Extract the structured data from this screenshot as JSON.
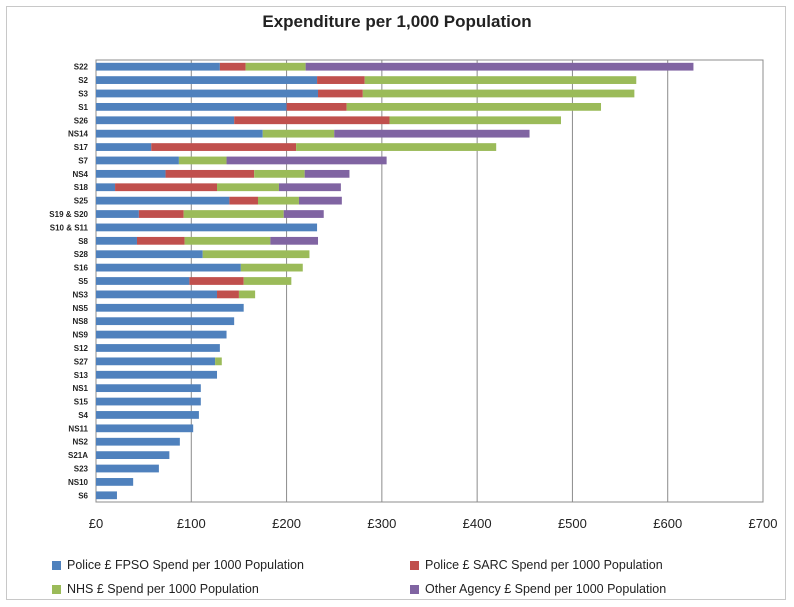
{
  "chart_data": {
    "type": "bar",
    "orientation": "horizontal",
    "stacked": true,
    "title": "Expenditure per 1,000 Population",
    "categories": [
      "S22",
      "S2",
      "S3",
      "S1",
      "S26",
      "NS14",
      "S17",
      "S7",
      "NS4",
      "S18",
      "S25",
      "S19 & S20",
      "S10 & S11",
      "S8",
      "S28",
      "S16",
      "S5",
      "NS3",
      "NS5",
      "NS8",
      "NS9",
      "S12",
      "S27",
      "S13",
      "NS1",
      "S15",
      "S4",
      "NS11",
      "NS2",
      "S21A",
      "S23",
      "NS10",
      "S6"
    ],
    "series": [
      {
        "name": "Police £ FPSO Spend per 1000 Population",
        "color": "#4f81bd",
        "values": [
          130,
          232,
          233,
          200,
          145,
          175,
          58,
          87,
          73,
          20,
          140,
          45,
          232,
          43,
          112,
          152,
          98,
          127,
          155,
          145,
          137,
          130,
          125,
          127,
          110,
          110,
          108,
          102,
          88,
          77,
          66,
          39,
          22
        ]
      },
      {
        "name": "Police £ SARC Spend per 1000 Population",
        "color": "#c0504d",
        "values": [
          27,
          50,
          47,
          63,
          163,
          0,
          152,
          0,
          93,
          107,
          30,
          47,
          0,
          50,
          0,
          0,
          57,
          23,
          0,
          0,
          0,
          0,
          0,
          0,
          0,
          0,
          0,
          0,
          0,
          0,
          0,
          0,
          0
        ]
      },
      {
        "name": "NHS £ Spend per 1000 Population",
        "color": "#9bbb59",
        "values": [
          63,
          285,
          285,
          267,
          180,
          75,
          210,
          50,
          53,
          65,
          43,
          105,
          0,
          90,
          112,
          65,
          50,
          17,
          0,
          0,
          0,
          0,
          7,
          0,
          0,
          0,
          0,
          0,
          0,
          0,
          0,
          0,
          0
        ]
      },
      {
        "name": "Other Agency £ Spend per  1000 Population",
        "color": "#8064a2",
        "values": [
          407,
          0,
          0,
          0,
          0,
          205,
          0,
          168,
          47,
          65,
          45,
          42,
          0,
          50,
          0,
          0,
          0,
          0,
          0,
          0,
          0,
          0,
          0,
          0,
          0,
          0,
          0,
          0,
          0,
          0,
          0,
          0,
          0
        ]
      }
    ],
    "xlim": [
      0,
      700
    ],
    "xticks": [
      0,
      100,
      200,
      300,
      400,
      500,
      600,
      700
    ],
    "xtick_labels": [
      "£0",
      "£100",
      "£200",
      "£300",
      "£400",
      "£500",
      "£600",
      "£700"
    ],
    "grid": "vertical",
    "legend_position": "bottom"
  }
}
